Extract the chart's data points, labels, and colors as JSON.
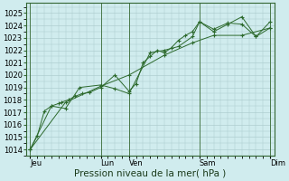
{
  "bg_color": "#d0ecee",
  "grid_color": "#a8c8ca",
  "line_color": "#2d6a2d",
  "marker_color": "#2d6a2d",
  "ylim": [
    1013.5,
    1025.8
  ],
  "yticks": [
    1014,
    1015,
    1016,
    1017,
    1018,
    1019,
    1020,
    1021,
    1022,
    1023,
    1024,
    1025
  ],
  "xlabel": "Pression niveau de la mer( hPa )",
  "xlabel_fontsize": 7.5,
  "tick_fontsize": 6.0,
  "day_labels": [
    "Jeu",
    "Lun",
    "Ven",
    "Sam",
    "Dim"
  ],
  "day_positions": [
    0.0,
    5.0,
    7.0,
    12.0,
    17.0
  ],
  "vline_positions": [
    0.0,
    5.0,
    7.0,
    12.0,
    17.0
  ],
  "xlim": [
    -0.3,
    17.3
  ],
  "series1_x": [
    0,
    0.5,
    1,
    1.5,
    2,
    2.2,
    2.7,
    3.2,
    3.7,
    4.2,
    5.0,
    6.0,
    7.0,
    7.5,
    8.0,
    8.5,
    9.0,
    9.5,
    10.0,
    10.5,
    11.0,
    11.5,
    12.0,
    13.0,
    14.0,
    15.0,
    16.0,
    17.0
  ],
  "series1_y": [
    1014.0,
    1015.1,
    1017.1,
    1017.5,
    1017.7,
    1017.8,
    1018.0,
    1018.3,
    1018.5,
    1018.6,
    1019.0,
    1020.0,
    1018.7,
    1019.3,
    1021.0,
    1021.5,
    1022.0,
    1021.8,
    1022.2,
    1022.8,
    1023.2,
    1023.5,
    1024.3,
    1023.5,
    1024.1,
    1024.7,
    1023.1,
    1024.3
  ],
  "series2_x": [
    0,
    1.5,
    2.5,
    3.5,
    5.0,
    6.0,
    7.0,
    8.5,
    9.5,
    10.5,
    11.5,
    12.0,
    13.0,
    14.0,
    15.0,
    16.0,
    17.0
  ],
  "series2_y": [
    1014.0,
    1017.5,
    1017.3,
    1019.0,
    1019.2,
    1018.9,
    1018.5,
    1021.8,
    1022.0,
    1022.3,
    1023.1,
    1024.3,
    1023.7,
    1024.2,
    1024.1,
    1023.1,
    1023.8
  ],
  "series3_x": [
    0,
    2.5,
    5.0,
    7.0,
    9.5,
    11.5,
    13.0,
    15.0,
    17.0
  ],
  "series3_y": [
    1014.0,
    1017.8,
    1019.1,
    1020.0,
    1021.6,
    1022.6,
    1023.2,
    1023.2,
    1023.8
  ]
}
